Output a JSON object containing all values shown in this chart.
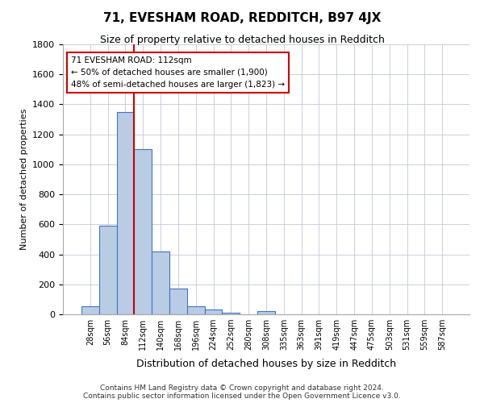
{
  "title": "71, EVESHAM ROAD, REDDITCH, B97 4JX",
  "subtitle": "Size of property relative to detached houses in Redditch",
  "xlabel": "Distribution of detached houses by size in Redditch",
  "ylabel": "Number of detached properties",
  "bar_values": [
    55,
    590,
    1350,
    1100,
    420,
    170,
    55,
    30,
    10,
    0,
    20,
    0,
    0,
    0,
    0,
    0,
    0,
    0,
    0,
    0,
    0
  ],
  "bin_labels": [
    "28sqm",
    "56sqm",
    "84sqm",
    "112sqm",
    "140sqm",
    "168sqm",
    "196sqm",
    "224sqm",
    "252sqm",
    "280sqm",
    "308sqm",
    "335sqm",
    "363sqm",
    "391sqm",
    "419sqm",
    "447sqm",
    "475sqm",
    "503sqm",
    "531sqm",
    "559sqm",
    "587sqm"
  ],
  "bar_color": "#b8cce4",
  "bar_edge_color": "#4472c4",
  "vline_x_index": 3,
  "vline_color": "#cc0000",
  "annotation_text": "71 EVESHAM ROAD: 112sqm\n← 50% of detached houses are smaller (1,900)\n48% of semi-detached houses are larger (1,823) →",
  "annotation_box_color": "#ffffff",
  "annotation_box_edge": "#cc0000",
  "ylim": [
    0,
    1800
  ],
  "yticks": [
    0,
    200,
    400,
    600,
    800,
    1000,
    1200,
    1400,
    1600,
    1800
  ],
  "footer_line1": "Contains HM Land Registry data © Crown copyright and database right 2024.",
  "footer_line2": "Contains public sector information licensed under the Open Government Licence v3.0.",
  "background_color": "#ffffff",
  "grid_color": "#c0c8d8"
}
